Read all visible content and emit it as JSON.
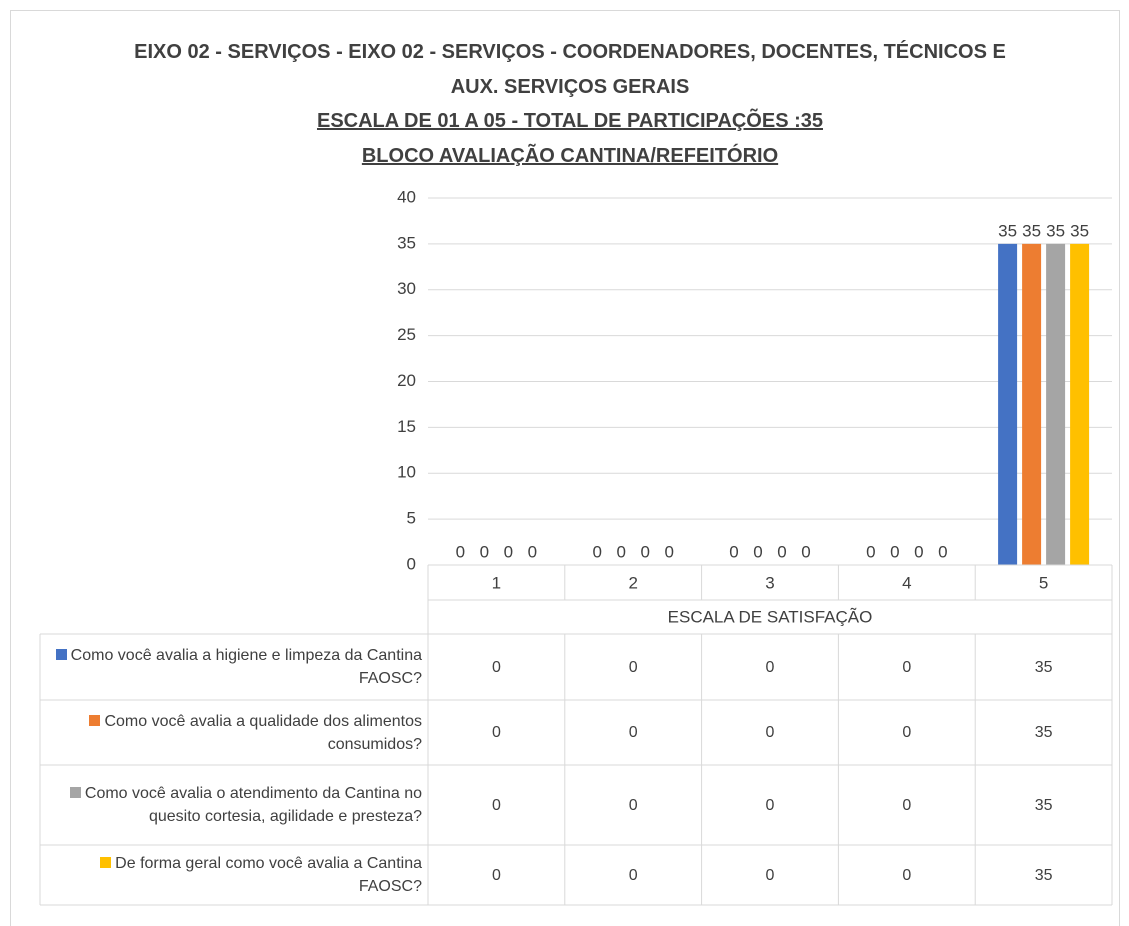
{
  "chart_data": {
    "type": "bar",
    "title": "EIXO 02 -  SERVIÇOS - EIXO 02 -  SERVIÇOS - COORDENADORES, DOCENTES, TÉCNICOS E AUX. SERVIÇOS GERAIS",
    "subtitles": [
      "ESCALA DE 01 A 05 - TOTAL  DE PARTICIPAÇÕES :35",
      "BLOCO AVALIAÇÃO CANTINA/REFEITÓRIO"
    ],
    "x_label": "ESCALA DE SATISFAÇÃO",
    "categories": [
      "1",
      "2",
      "3",
      "4",
      "5"
    ],
    "series": [
      {
        "name": "Como você avalia a higiene e limpeza da Cantina FAOSC?",
        "color": "#4472c4",
        "values": [
          0,
          0,
          0,
          0,
          35
        ]
      },
      {
        "name": "Como você avalia a qualidade dos alimentos consumidos?",
        "color": "#ed7d31",
        "values": [
          0,
          0,
          0,
          0,
          35
        ]
      },
      {
        "name": "Como você avalia o atendimento da Cantina no quesito cortesia, agilidade e presteza?",
        "color": "#a5a5a5",
        "values": [
          0,
          0,
          0,
          0,
          35
        ]
      },
      {
        "name": "De forma geral como você avalia a Cantina FAOSC?",
        "color": "#ffc000",
        "values": [
          0,
          0,
          0,
          0,
          35
        ]
      }
    ],
    "ylim": [
      0,
      40
    ],
    "yticks": [
      0,
      5,
      10,
      15,
      20,
      25,
      30,
      35,
      40
    ],
    "grid": true,
    "data_table": true
  }
}
